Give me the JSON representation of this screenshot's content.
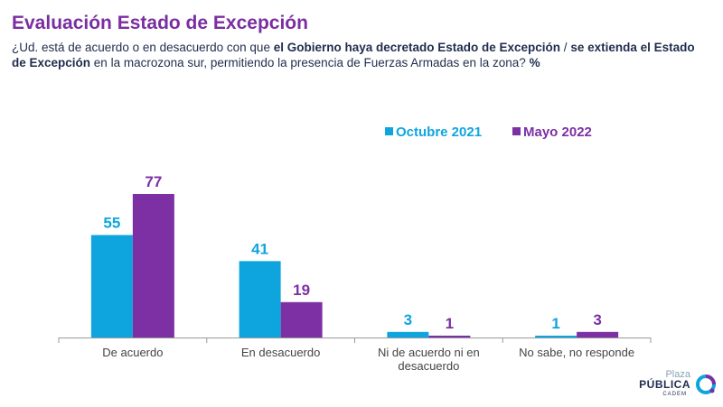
{
  "title": "Evaluación Estado de Excepción",
  "question": {
    "p1": "¿Ud. está de acuerdo o en desacuerdo con que ",
    "b1": "el Gobierno haya decretado Estado de Excepción",
    "p2": " / ",
    "b2": "se extienda el Estado de Excepción",
    "p3": " en la macrozona sur, permitiendo la presencia de Fuerzas Armadas en la zona? ",
    "b3": "%"
  },
  "logo": {
    "line1": "Plaza",
    "line2": "PÚBLICA",
    "line3": "CADEM"
  },
  "colors": {
    "title": "#7b2ea1",
    "series1": "#0ea5df",
    "series2": "#7d2fa4",
    "text": "#1f2d4d",
    "axis": "#9a9a9a"
  },
  "chart_data": {
    "type": "bar",
    "categories": [
      "De acuerdo",
      "En desacuerdo",
      "Ni de acuerdo ni en desacuerdo",
      "No sabe, no responde"
    ],
    "category_lines": [
      [
        "De acuerdo"
      ],
      [
        "En desacuerdo"
      ],
      [
        "Ni de acuerdo ni en",
        "desacuerdo"
      ],
      [
        "No sabe, no responde"
      ]
    ],
    "series": [
      {
        "name": "Octubre 2021",
        "values": [
          55,
          41,
          3,
          1
        ]
      },
      {
        "name": "Mayo 2022",
        "values": [
          77,
          19,
          1,
          3
        ]
      }
    ],
    "ylim": [
      0,
      77
    ],
    "grid": false,
    "legend": "top-right",
    "data_labels": true
  }
}
